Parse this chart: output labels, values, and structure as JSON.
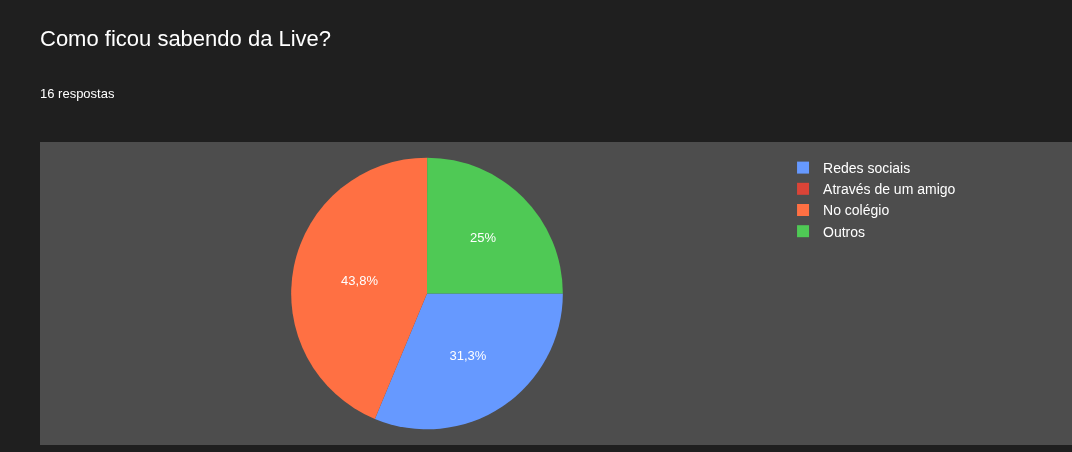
{
  "chart_data": {
    "type": "pie",
    "title": "Como ficou sabendo da Live?",
    "subtitle": "16 respostas",
    "categories": [
      "Redes sociais",
      "Através de um amigo",
      "No colégio",
      "Outros"
    ],
    "values": [
      31.3,
      0,
      43.8,
      25
    ],
    "value_labels": [
      "31,3%",
      null,
      "43,8%",
      "25%"
    ],
    "colors": [
      "#6699ff",
      "#db4437",
      "#ff7043",
      "#4fc955"
    ],
    "legend": "top right"
  }
}
